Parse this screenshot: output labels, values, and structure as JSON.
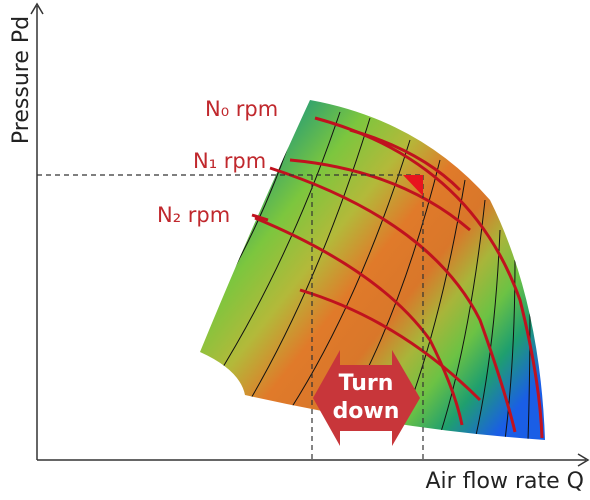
{
  "axes": {
    "y_label": "Pressure Pd",
    "x_label": "Air flow rate Q"
  },
  "speed_lines": [
    "N₀ rpm",
    "N₁ rpm",
    "N₂ rpm"
  ],
  "turndown": {
    "line1": "Turn",
    "line2": "down"
  }
}
